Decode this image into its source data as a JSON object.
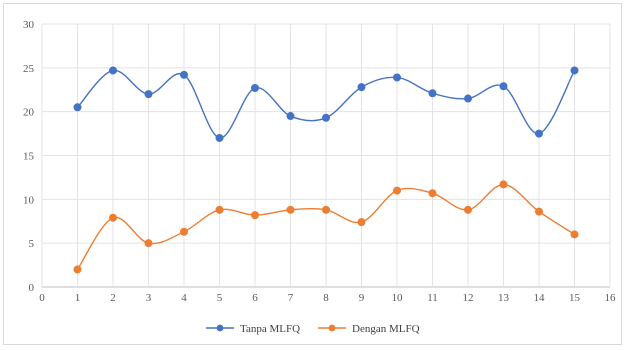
{
  "chart_data": {
    "type": "line",
    "x": [
      1,
      2,
      3,
      4,
      5,
      6,
      7,
      8,
      9,
      10,
      11,
      12,
      13,
      14,
      15
    ],
    "series": [
      {
        "name": "Tanpa MLFQ",
        "color": "#4472C4",
        "values": [
          20.5,
          24.7,
          22.0,
          24.2,
          17.0,
          22.7,
          19.5,
          19.3,
          22.8,
          23.9,
          22.1,
          21.5,
          22.9,
          17.5,
          24.7
        ]
      },
      {
        "name": "Dengan MLFQ",
        "color": "#ED7D31",
        "values": [
          2.0,
          7.9,
          5.0,
          6.3,
          8.8,
          8.2,
          8.8,
          8.8,
          7.4,
          11.0,
          10.7,
          8.8,
          11.7,
          8.6,
          6.0
        ]
      }
    ],
    "xlim": [
      0,
      16
    ],
    "ylim": [
      0,
      30
    ],
    "x_ticks": [
      "0",
      "1",
      "2",
      "3",
      "4",
      "5",
      "6",
      "7",
      "8",
      "9",
      "10",
      "11",
      "12",
      "13",
      "14",
      "15",
      "16"
    ],
    "y_ticks": [
      "0",
      "5",
      "10",
      "15",
      "20",
      "25",
      "30"
    ],
    "grid": "both",
    "legend_position": "bottom",
    "smooth": true,
    "markers": "circle"
  }
}
